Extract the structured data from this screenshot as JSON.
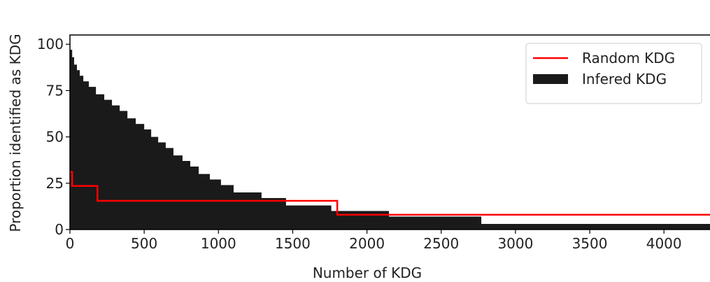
{
  "chart_data": {
    "type": "step",
    "xlabel": "Number of KDG",
    "ylabel": "Proportion identified as KDG",
    "xlim": [
      0,
      4310
    ],
    "ylim": [
      0,
      105
    ],
    "xticks": [
      0,
      500,
      1000,
      1500,
      2000,
      2500,
      3000,
      3500,
      4000
    ],
    "yticks": [
      0,
      25,
      50,
      75,
      100
    ],
    "legend": "upper right",
    "series": [
      {
        "name": "Random KDG",
        "color": "#ff0000",
        "fill": false,
        "x": [
          0,
          15,
          185,
          1800
        ],
        "values": [
          31,
          23.5,
          15.5,
          8
        ]
      },
      {
        "name": "Infered KDG",
        "color": "#1a1a1a",
        "fill": true,
        "x": [
          0,
          15,
          28,
          47,
          66,
          90,
          127,
          175,
          231,
          283,
          335,
          387,
          443,
          500,
          547,
          594,
          645,
          697,
          758,
          810,
          867,
          942,
          1017,
          1102,
          1290,
          1455,
          1760,
          2148,
          2770
        ],
        "values": [
          97,
          93,
          89,
          86,
          83,
          80,
          77,
          73,
          70,
          67,
          64,
          60,
          57,
          54,
          50,
          47,
          44,
          40,
          37,
          34,
          30,
          27,
          24,
          20,
          17,
          13,
          10,
          7,
          3
        ]
      }
    ]
  }
}
